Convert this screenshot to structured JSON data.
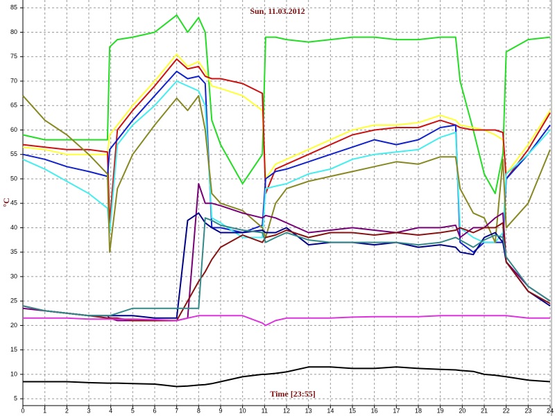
{
  "chart_data": {
    "type": "line",
    "title": "Sun, 11.03.2012",
    "xlabel": "Time [23:55]",
    "ylabel": "°C",
    "grid": true,
    "xlim": [
      0,
      24
    ],
    "ylim": [
      3.6,
      86.6
    ],
    "xticks": [
      0,
      1,
      2,
      3,
      4,
      5,
      6,
      7,
      8,
      9,
      10,
      11,
      12,
      13,
      14,
      15,
      16,
      17,
      18,
      19,
      20,
      21,
      22,
      23,
      24
    ],
    "yticks": [
      5,
      10,
      15,
      20,
      25,
      30,
      35,
      40,
      45,
      50,
      55,
      60,
      65,
      70,
      75,
      80,
      85
    ],
    "x": [
      0,
      1,
      2,
      3,
      3.85,
      3.95,
      4.3,
      5,
      6,
      7,
      7.5,
      8,
      8.3,
      8.6,
      9,
      10,
      10.9,
      11.05,
      11.5,
      12,
      13,
      14,
      15,
      16,
      17,
      18,
      19,
      19.7,
      19.9,
      20.5,
      21,
      21.5,
      21.85,
      22,
      23,
      24
    ],
    "series": [
      {
        "color": "#22dd22",
        "values": [
          59,
          58,
          58,
          58,
          58,
          77,
          78.5,
          79,
          80,
          83.5,
          80,
          83,
          80,
          62,
          57,
          49,
          55,
          79,
          79,
          78.5,
          78,
          78.5,
          79,
          79,
          78.5,
          78.5,
          79,
          79,
          70,
          60,
          51,
          47,
          55,
          76,
          78.5,
          79
        ]
      },
      {
        "color": "#ffff33",
        "values": [
          56.5,
          56,
          55,
          55,
          55,
          59,
          61,
          65,
          70,
          75.5,
          73,
          74,
          72,
          69,
          68.5,
          67,
          64,
          50,
          53,
          54,
          56,
          58,
          60,
          61,
          61,
          61.5,
          63,
          62,
          61,
          60.5,
          60,
          59,
          58,
          51,
          57,
          64
        ]
      },
      {
        "color": "#cc1111",
        "values": [
          57,
          56.5,
          56,
          56,
          55.5,
          41,
          60,
          64,
          69,
          74.5,
          72.5,
          73,
          71,
          70.5,
          70.5,
          69.5,
          67.5,
          47,
          52,
          53,
          55,
          57,
          59,
          60,
          60.5,
          60.5,
          62,
          61,
          60.5,
          60,
          60,
          60,
          59.5,
          50,
          56,
          63.5
        ]
      },
      {
        "color": "#1122cc",
        "values": [
          55,
          54,
          52.5,
          51.5,
          50.5,
          56,
          58,
          62,
          67,
          72,
          70.5,
          71,
          69.5,
          40,
          40,
          39,
          40.5,
          50,
          51.5,
          52,
          53.5,
          55,
          56.5,
          58,
          57,
          58,
          60.5,
          61,
          37,
          35,
          37,
          37,
          37,
          50,
          55,
          61
        ]
      },
      {
        "color": "#44eeee",
        "values": [
          54,
          52,
          49.5,
          47,
          44,
          39,
          57,
          61,
          65,
          70,
          69,
          68,
          65,
          42,
          41,
          38,
          38,
          48,
          48.5,
          49,
          51,
          52,
          54,
          55,
          55.5,
          56,
          58.5,
          59.5,
          40,
          38,
          37,
          37,
          39,
          51,
          55,
          60
        ]
      },
      {
        "color": "#888822",
        "values": [
          67,
          62,
          59,
          55,
          51,
          35,
          48,
          55,
          61,
          66.5,
          64,
          67,
          60,
          47,
          45,
          43.5,
          40,
          38,
          45,
          48,
          49.5,
          50.5,
          51.5,
          52.5,
          53.5,
          53,
          54.5,
          54.5,
          48,
          43,
          42,
          37,
          54,
          40,
          45,
          56
        ]
      },
      {
        "color": "#770077",
        "values": [
          23.5,
          23,
          22.5,
          22,
          22,
          21.5,
          21,
          21,
          21,
          21,
          21.5,
          49,
          45,
          45,
          44.5,
          43,
          42,
          42.5,
          42,
          41,
          39,
          39.5,
          40,
          39.5,
          39,
          40,
          40,
          40.5,
          38,
          40,
          40,
          42,
          43,
          33,
          28,
          25
        ]
      },
      {
        "color": "#000088",
        "values": [
          24,
          23,
          22.5,
          22,
          22,
          22,
          22,
          22,
          21.5,
          21.5,
          41.5,
          43,
          41,
          40,
          39,
          39,
          39.5,
          39,
          39,
          40,
          36.5,
          37,
          37,
          36.5,
          37,
          36,
          36.5,
          36,
          35,
          34.5,
          38,
          39,
          37,
          33,
          27,
          24
        ]
      },
      {
        "color": "#881111",
        "values": [
          24,
          23,
          22.5,
          22,
          21.5,
          21.5,
          21.5,
          21,
          21,
          21,
          25,
          29,
          31,
          33.5,
          36,
          38.5,
          37,
          38,
          38.5,
          39.5,
          38,
          39,
          39,
          38.5,
          39,
          38.5,
          39,
          39.5,
          40,
          39,
          40,
          40,
          41,
          33,
          27,
          24.5
        ]
      },
      {
        "color": "#338888",
        "values": [
          24,
          23,
          22.5,
          22,
          22,
          22,
          22.5,
          23.5,
          23.5,
          23.5,
          23.5,
          23.5,
          42,
          41.5,
          40.5,
          39.5,
          39,
          37,
          38,
          39,
          37.5,
          37,
          37,
          37,
          37,
          36.5,
          37,
          38,
          37.5,
          36,
          37.5,
          38.5,
          38,
          34,
          28,
          25
        ]
      },
      {
        "color": "#dd33dd",
        "values": [
          21.5,
          21.5,
          21.5,
          21.3,
          21.3,
          21.3,
          21.3,
          21.3,
          21.2,
          21,
          21.5,
          22,
          22,
          22,
          22,
          22,
          20.5,
          20,
          21,
          21.5,
          21.5,
          21.5,
          21.7,
          21.8,
          21.8,
          21.8,
          22,
          22,
          22,
          22,
          22,
          22,
          22,
          22,
          21.5,
          21.5
        ]
      },
      {
        "color": "#000000",
        "values": [
          8.5,
          8.5,
          8.5,
          8.3,
          8.2,
          8.2,
          8.2,
          8.1,
          8,
          7.5,
          7.6,
          7.8,
          7.9,
          8.1,
          8.5,
          9.5,
          10,
          10,
          10.2,
          10.5,
          11.5,
          11.5,
          11.2,
          11.2,
          11.5,
          11.2,
          11,
          10.9,
          10.8,
          10.6,
          10,
          9.8,
          9.6,
          9.5,
          8.8,
          8.5
        ]
      }
    ]
  }
}
